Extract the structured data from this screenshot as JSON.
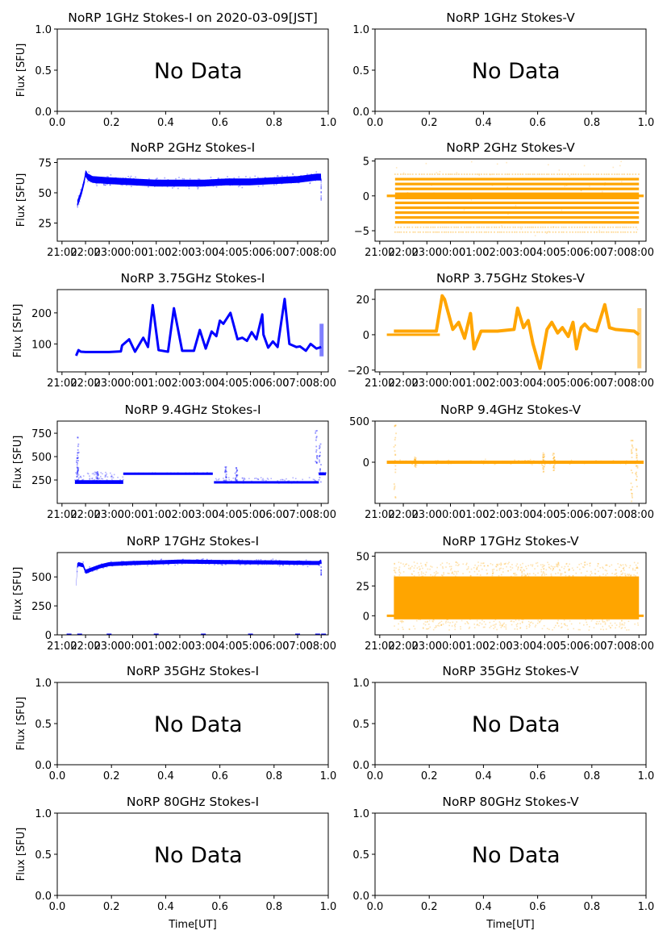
{
  "figure": {
    "title_prefix": "NoRP",
    "date_label": "on 2020-03-09[JST]",
    "xlabel": "Time[UT]",
    "ylabel": "Flux [SFU]",
    "no_data_text": "No Data",
    "colors": {
      "stokes_i": "#0000ff",
      "stokes_v": "#ffa500",
      "axes": "#000000"
    }
  },
  "chart_data": [
    {
      "id": "1ghz-i",
      "type": "scatter",
      "title": "NoRP 1GHz Stokes-I on 2020-03-09[JST]",
      "stokes": "I",
      "has_data": false,
      "xlabel": "",
      "ylabel": "Flux [SFU]",
      "xlim": [
        0,
        1
      ],
      "ylim": [
        0,
        1
      ],
      "xticks": [
        "0.0",
        "0.2",
        "0.4",
        "0.6",
        "0.8",
        "1.0"
      ],
      "yticks": [
        "0.0",
        "0.5",
        "1.0"
      ],
      "annotation": "No Data"
    },
    {
      "id": "1ghz-v",
      "type": "scatter",
      "title": "NoRP 1GHz Stokes-V",
      "stokes": "V",
      "has_data": false,
      "xlabel": "",
      "ylabel": "",
      "xlim": [
        0,
        1
      ],
      "ylim": [
        0,
        1
      ],
      "xticks": [
        "0.0",
        "0.2",
        "0.4",
        "0.6",
        "0.8",
        "1.0"
      ],
      "yticks": [
        "0.0",
        "0.5",
        "1.0"
      ],
      "annotation": "No Data"
    },
    {
      "id": "2ghz-i",
      "type": "scatter",
      "title": "NoRP 2GHz Stokes-I",
      "stokes": "I",
      "has_data": true,
      "ylabel": "Flux [SFU]",
      "xlim_hours": [
        20.8,
        32.3
      ],
      "ylim": [
        10,
        78
      ],
      "yticks": [
        25,
        50,
        75
      ],
      "xticks": [
        "21:00",
        "22:00",
        "23:00",
        "00:00",
        "01:00",
        "02:00",
        "03:00",
        "04:00",
        "05:00",
        "06:00",
        "07:00",
        "08:00"
      ],
      "series": {
        "t": [
          21.65,
          21.75,
          21.85,
          21.95,
          22.0,
          22.1,
          22.3,
          23,
          0,
          1,
          2,
          3,
          4,
          5,
          6,
          7,
          7.8,
          8.0
        ],
        "y": [
          41,
          46,
          52,
          60,
          66,
          63,
          61,
          60,
          59,
          58,
          58,
          58,
          59,
          59,
          60,
          61,
          63,
          63
        ],
        "spread": 4
      }
    },
    {
      "id": "2ghz-v",
      "type": "scatter",
      "title": "NoRP 2GHz Stokes-V",
      "stokes": "V",
      "has_data": true,
      "ylabel": "",
      "xlim_hours": [
        20.8,
        32.3
      ],
      "ylim": [
        -6.5,
        5.3
      ],
      "yticks": [
        -5,
        0,
        5
      ],
      "xticks": [
        "21:00",
        "22:00",
        "23:00",
        "00:00",
        "01:00",
        "02:00",
        "03:00",
        "04:00",
        "05:00",
        "06:00",
        "07:00",
        "08:00"
      ],
      "levels": [
        -3.8,
        -3.1,
        -2.4,
        -1.7,
        -1.0,
        -0.3,
        0.3,
        1.0,
        1.7,
        2.4
      ],
      "sparse_levels": [
        -5.2,
        -4.5,
        3.1
      ],
      "zero_line": [
        21.3,
        32.2
      ]
    },
    {
      "id": "375ghz-i",
      "type": "line",
      "title": "NoRP 3.75GHz Stokes-I",
      "stokes": "I",
      "has_data": true,
      "ylabel": "Flux [SFU]",
      "xlim_hours": [
        20.8,
        32.3
      ],
      "ylim": [
        10,
        275
      ],
      "yticks": [
        100,
        200
      ],
      "xticks": [
        "21:00",
        "22:00",
        "23:00",
        "00:00",
        "01:00",
        "02:00",
        "03:00",
        "04:00",
        "05:00",
        "06:00",
        "07:00",
        "08:00"
      ],
      "series": {
        "t": [
          21.6,
          21.7,
          21.8,
          22,
          23,
          23.5,
          23.55,
          23.85,
          24.1,
          24.45,
          24.65,
          24.85,
          25.1,
          25.5,
          25.75,
          26.1,
          26.6,
          26.85,
          27.1,
          27.35,
          27.55,
          27.7,
          27.85,
          28.15,
          28.45,
          28.65,
          28.85,
          29.05,
          29.25,
          29.5,
          29.55,
          29.75,
          29.95,
          30.15,
          30.45,
          30.65,
          30.95,
          31.1,
          31.35,
          31.55,
          31.8,
          32.0
        ],
        "y": [
          62,
          80,
          75,
          74,
          74,
          76,
          95,
          115,
          75,
          120,
          90,
          225,
          80,
          75,
          215,
          78,
          78,
          145,
          85,
          140,
          125,
          175,
          165,
          200,
          115,
          120,
          110,
          138,
          115,
          195,
          130,
          88,
          108,
          90,
          245,
          100,
          90,
          92,
          78,
          100,
          85,
          90
        ]
      },
      "spike_burst": {
        "t": 32.0,
        "ymin": 60,
        "ymax": 165
      }
    },
    {
      "id": "375ghz-v",
      "type": "line",
      "title": "NoRP 3.75GHz Stokes-V",
      "stokes": "V",
      "has_data": true,
      "ylabel": "",
      "xlim_hours": [
        20.8,
        32.3
      ],
      "ylim": [
        -21,
        25.5
      ],
      "yticks": [
        -20,
        0,
        20
      ],
      "xticks": [
        "21:00",
        "22:00",
        "23:00",
        "00:00",
        "01:00",
        "02:00",
        "03:00",
        "04:00",
        "05:00",
        "06:00",
        "07:00",
        "08:00"
      ],
      "series": {
        "t": [
          21.6,
          23.4,
          23.5,
          23.65,
          23.75,
          24.1,
          24.35,
          24.6,
          24.85,
          25.0,
          25.3,
          26.0,
          26.7,
          26.85,
          27.1,
          27.3,
          27.5,
          27.8,
          28.1,
          28.3,
          28.55,
          28.75,
          29.0,
          29.2,
          29.35,
          29.55,
          29.7,
          29.9,
          30.2,
          30.55,
          30.75,
          31.0,
          31.8,
          32.0
        ],
        "y": [
          2,
          2,
          10,
          22,
          20,
          3,
          7,
          -2,
          12,
          -8,
          2,
          2,
          3,
          15,
          4,
          8,
          -5,
          -19,
          3,
          7,
          1,
          4,
          -1,
          7,
          -8,
          4,
          6,
          3,
          2,
          17,
          4,
          3,
          2,
          0
        ]
      },
      "spike_burst": {
        "t": 32.0,
        "ymin": -19,
        "ymax": 15
      },
      "zero_line": [
        21.3,
        23.55
      ]
    },
    {
      "id": "94ghz-i",
      "type": "scatter",
      "title": "NoRP 9.4GHz Stokes-I",
      "stokes": "I",
      "has_data": true,
      "ylabel": "Flux [SFU]",
      "xlim_hours": [
        20.8,
        32.3
      ],
      "ylim": [
        0,
        880
      ],
      "yticks": [
        250,
        500,
        750
      ],
      "xticks": [
        "21:00",
        "22:00",
        "23:00",
        "00:00",
        "01:00",
        "02:00",
        "03:00",
        "04:00",
        "05:00",
        "06:00",
        "07:00",
        "08:00"
      ],
      "segments": [
        {
          "t0": 21.55,
          "t1": 23.6,
          "y": 215,
          "spread": 40
        },
        {
          "t0": 23.6,
          "t1": 27.4,
          "y": 315,
          "spread": 4
        },
        {
          "t0": 27.45,
          "t1": 31.9,
          "y": 215,
          "spread": 20
        },
        {
          "t0": 31.9,
          "t1": 32.2,
          "y": 310,
          "spread": 6
        }
      ],
      "spikes": [
        {
          "t": 21.65,
          "y": 530
        },
        {
          "t": 21.68,
          "y": 790
        },
        {
          "t": 22.5,
          "y": 340
        },
        {
          "t": 27.95,
          "y": 390
        },
        {
          "t": 28.4,
          "y": 400
        },
        {
          "t": 31.8,
          "y": 780
        },
        {
          "t": 31.95,
          "y": 640
        }
      ]
    },
    {
      "id": "94ghz-v",
      "type": "scatter",
      "title": "NoRP 9.4GHz Stokes-V",
      "stokes": "V",
      "has_data": true,
      "ylabel": "",
      "xlim_hours": [
        20.8,
        32.3
      ],
      "ylim": [
        -500,
        500
      ],
      "yticks": [
        0,
        500
      ],
      "xticks": [
        "21:00",
        "22:00",
        "23:00",
        "00:00",
        "01:00",
        "02:00",
        "03:00",
        "04:00",
        "05:00",
        "06:00",
        "07:00",
        "08:00"
      ],
      "baseline": {
        "t0": 21.3,
        "t1": 32.2,
        "y": 0
      },
      "spikes": [
        {
          "t": 21.65,
          "ymin": -480,
          "ymax": 450
        },
        {
          "t": 22.5,
          "ymin": -60,
          "ymax": 60
        },
        {
          "t": 27.95,
          "ymin": -120,
          "ymax": 120
        },
        {
          "t": 28.4,
          "ymin": -100,
          "ymax": 110
        },
        {
          "t": 31.7,
          "ymin": -480,
          "ymax": 400
        },
        {
          "t": 31.9,
          "ymin": -300,
          "ymax": 250
        }
      ]
    },
    {
      "id": "17ghz-i",
      "type": "scatter",
      "title": "NoRP 17GHz Stokes-I",
      "stokes": "I",
      "has_data": true,
      "ylabel": "Flux [SFU]",
      "xlim_hours": [
        20.8,
        32.3
      ],
      "ylim": [
        0,
        710
      ],
      "yticks": [
        0,
        250,
        500
      ],
      "xticks": [
        "21:00",
        "22:00",
        "23:00",
        "00:00",
        "01:00",
        "02:00",
        "03:00",
        "04:00",
        "05:00",
        "06:00",
        "07:00",
        "08:00"
      ],
      "series": {
        "t": [
          21.6,
          21.65,
          21.7,
          21.9,
          22.0,
          22.2,
          22.6,
          23,
          24,
          25,
          26,
          27,
          28,
          29,
          30,
          31,
          31.9,
          32.0
        ],
        "y": [
          405,
          600,
          610,
          600,
          545,
          560,
          590,
          610,
          620,
          625,
          632,
          630,
          628,
          626,
          625,
          622,
          620,
          635
        ],
        "spread": 25
      },
      "zero_marks": [
        21.3,
        21.75,
        23.0,
        25.0,
        27.0,
        29.0,
        31.0,
        31.85,
        32.1
      ]
    },
    {
      "id": "17ghz-v",
      "type": "scatter",
      "title": "NoRP 17GHz Stokes-V",
      "stokes": "V",
      "has_data": true,
      "ylabel": "",
      "xlim_hours": [
        20.8,
        32.3
      ],
      "ylim": [
        -16,
        53
      ],
      "yticks": [
        0,
        25,
        50
      ],
      "xticks": [
        "21:00",
        "22:00",
        "23:00",
        "00:00",
        "01:00",
        "02:00",
        "03:00",
        "04:00",
        "05:00",
        "06:00",
        "07:00",
        "08:00"
      ],
      "band": {
        "t0": 21.6,
        "t1": 32.0,
        "ymin": -3,
        "ymax": 33,
        "scatter_min": -12,
        "scatter_max": 45
      },
      "zero_line": [
        21.3,
        32.2
      ]
    },
    {
      "id": "35ghz-i",
      "type": "scatter",
      "title": "NoRP 35GHz Stokes-I",
      "stokes": "I",
      "has_data": false,
      "ylabel": "Flux [SFU]",
      "xlim": [
        0,
        1
      ],
      "ylim": [
        0,
        1
      ],
      "xticks": [
        "0.0",
        "0.2",
        "0.4",
        "0.6",
        "0.8",
        "1.0"
      ],
      "yticks": [
        "0.0",
        "0.5",
        "1.0"
      ],
      "annotation": "No Data"
    },
    {
      "id": "35ghz-v",
      "type": "scatter",
      "title": "NoRP 35GHz Stokes-V",
      "stokes": "V",
      "has_data": false,
      "ylabel": "",
      "xlim": [
        0,
        1
      ],
      "ylim": [
        0,
        1
      ],
      "xticks": [
        "0.0",
        "0.2",
        "0.4",
        "0.6",
        "0.8",
        "1.0"
      ],
      "yticks": [
        "0.0",
        "0.5",
        "1.0"
      ],
      "annotation": "No Data"
    },
    {
      "id": "80ghz-i",
      "type": "scatter",
      "title": "NoRP 80GHz Stokes-I",
      "stokes": "I",
      "has_data": false,
      "xlabel": "Time[UT]",
      "ylabel": "Flux [SFU]",
      "xlim": [
        0,
        1
      ],
      "ylim": [
        0,
        1
      ],
      "xticks": [
        "0.0",
        "0.2",
        "0.4",
        "0.6",
        "0.8",
        "1.0"
      ],
      "yticks": [
        "0.0",
        "0.5",
        "1.0"
      ],
      "annotation": "No Data"
    },
    {
      "id": "80ghz-v",
      "type": "scatter",
      "title": "NoRP 80GHz Stokes-V",
      "stokes": "V",
      "has_data": false,
      "xlabel": "Time[UT]",
      "ylabel": "",
      "xlim": [
        0,
        1
      ],
      "ylim": [
        0,
        1
      ],
      "xticks": [
        "0.0",
        "0.2",
        "0.4",
        "0.6",
        "0.8",
        "1.0"
      ],
      "yticks": [
        "0.0",
        "0.5",
        "1.0"
      ],
      "annotation": "No Data"
    }
  ]
}
